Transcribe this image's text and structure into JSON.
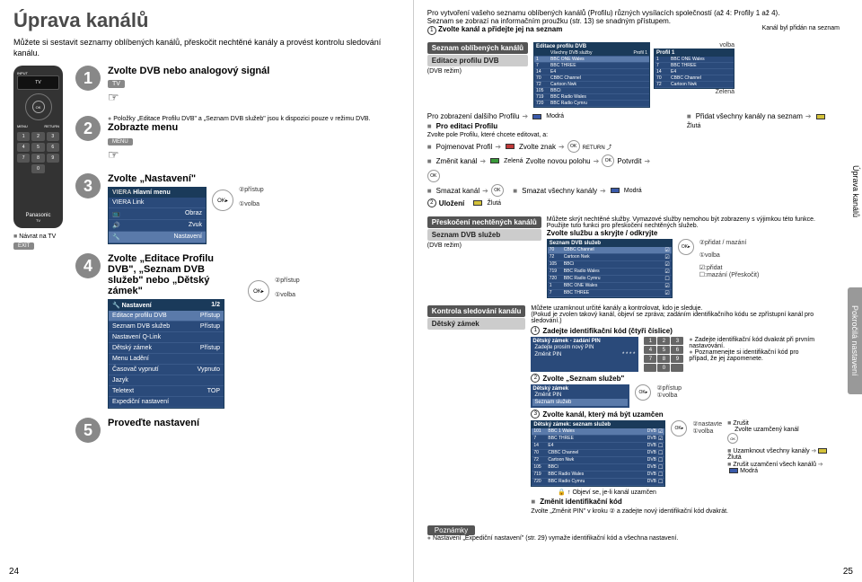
{
  "title": "Úprava kanálů",
  "intro": "Můžete si sestavit seznamy oblíbených kanálů, přeskočit nechtěné kanály a provést kontrolu sledování kanálu.",
  "steps": {
    "s1": {
      "num": "1",
      "title": "Zvolte DVB nebo analogový signál",
      "badge": "TV"
    },
    "s2": {
      "num": "2",
      "title": "Zobrazte menu",
      "note": "Položky „Editace Profilu DVB\" a „Seznam DVB služeb\" jsou k dispozici pouze v režimu DVB.",
      "badge": "MENU"
    },
    "s3": {
      "num": "3",
      "title": "Zvolte „Nastavení\"",
      "a1": "přístup",
      "a2": "volba"
    },
    "s4": {
      "num": "4",
      "title": "Zvolte „Editace Profilu DVB\", „Seznam DVB služeb\" nebo „Dětský zámek\"",
      "a1": "přístup",
      "a2": "volba"
    },
    "s5": {
      "num": "5",
      "title": "Proveďte nastavení"
    }
  },
  "remote": {
    "tv": "TV",
    "input": "INPUT",
    "ok": "OK",
    "menu": "MENU",
    "return": "RETURN",
    "exit": "EXIT",
    "nums": [
      "1",
      "2",
      "3",
      "4",
      "5",
      "6",
      "7",
      "8",
      "9",
      "0"
    ],
    "brand": "Panasonic",
    "brand_sub": "TV",
    "back_label": "Návrat na TV"
  },
  "menu3": {
    "hdr": "Hlavní menu",
    "items": [
      "VIERA Link",
      "Obraz",
      "Zvuk",
      "Nastavení"
    ]
  },
  "menu4": {
    "hdr": "Nastavení",
    "rows": [
      [
        "Editace profilu DVB",
        "Přístup"
      ],
      [
        "Seznam DVB služeb",
        "Přístup"
      ],
      [
        "Nastavení Q-Link",
        ""
      ],
      [
        "Dětský zámek",
        "Přístup"
      ],
      [
        "Menu Ladění",
        ""
      ],
      [
        "Časovač vypnutí",
        "Vypnuto"
      ],
      [
        "Jazyk",
        ""
      ],
      [
        "Teletext",
        "TOP"
      ],
      [
        "Expediční nastavení",
        ""
      ]
    ],
    "page": "1/2"
  },
  "right_intro": {
    "l1": "Pro vytvoření vašeho seznamu oblíbených kanálů (Profilu) různých vysílacích společností (až 4: Profily 1 až 4).",
    "l2": "Seznam se zobrazí na informačním proužku (str. 13) se snadným přístupem.",
    "l3": "Zvolte kanál a přidejte jej na seznam",
    "l3_note": "Kanál byl přidán na seznam"
  },
  "sec1": {
    "label1": "Seznam oblíbených kanálů",
    "label2": "Editace profilu DVB",
    "sub": "(DVB režim)",
    "table_hdr": "Editace profilu DVB",
    "col1": "Všechny DVB služby",
    "col2": "Profil 1",
    "channels": [
      [
        "1",
        "BBC ONE Wales"
      ],
      [
        "7",
        "BBC THREE"
      ],
      [
        "14",
        "E4"
      ],
      [
        "70",
        "CBBC Channel"
      ],
      [
        "72",
        "Cartoon Nwk"
      ],
      [
        "105",
        "BBCi"
      ],
      [
        "719",
        "BBC Radio Wales"
      ],
      [
        "720",
        "BBC Radio Cymru"
      ]
    ],
    "i1": "Pro zobrazení dalšího Profilu",
    "i2": "Přidat všechny kanály na seznam",
    "i3": "Pro editaci Profilu",
    "i4": "Zvolte pole Profilu, které chcete editovat, a:",
    "i5": "Pojmenovat Profil",
    "i5a": "Zvolte znak",
    "i6": "Změnit kanál",
    "i6a": "Zvolte novou polohu",
    "i6b": "Potvrdit",
    "i7": "Smazat kanál",
    "i7a": "Smazat všechny kanály",
    "i8": "Uložení",
    "c_green": "Zelená",
    "c_blue": "Modrá",
    "c_yellow": "Žlutá",
    "c_volba": "volba"
  },
  "sec2": {
    "label1": "Přeskočení nechtěných kanálů",
    "label2": "Seznam DVB služeb",
    "sub": "(DVB režim)",
    "p1": "Můžete skrýt nechtěné služby. Vymazové služby nemohou být zobrazeny s výjimkou této funkce.",
    "p2": "Použijte tuto funkci pro přeskočení nechtěných služeb.",
    "p3": "Zvolte službu a skryjte / odkryjte",
    "tbl_hdr": "Seznam DVB služeb",
    "rows": [
      [
        "70",
        "CBBC Channel",
        "☑"
      ],
      [
        "72",
        "Cartoon Nwk",
        "☑"
      ],
      [
        "105",
        "BBCi",
        "☑"
      ],
      [
        "719",
        "BBC Radio Wales",
        "☑"
      ],
      [
        "720",
        "BBC Radio Cymru",
        "☐"
      ],
      [
        "1",
        "BBC ONE Wales",
        "☑"
      ],
      [
        "7",
        "BBC THREE",
        "☑"
      ]
    ],
    "a1": "přidat / mazání",
    "a2": "volba",
    "leg1": ":přidat",
    "leg2": ":mazání (Přeskočit)"
  },
  "sec3": {
    "label1": "Kontrola sledování kanálu",
    "label2": "Dětský zámek",
    "p1": "Můžete uzamknout určité kanály a kontrolovat, kdo je sleduje.",
    "p2": "(Pokud je zvolen takový kanál, objeví se zpráva; zadáním identifikačního kódu se zpřístupní kanál pro sledování.)",
    "h1": "Zadejte identifikační kód (čtyři číslice)",
    "pin_hdr": "Dětský zámek - zadání PIN",
    "pin_row": "Zadejte prosím nový PIN",
    "pin_row2": "Změnit PIN",
    "pin_stars": "* * * *",
    "b1": "Zadejte identifikační kód dvakrát při prvním nastavování.",
    "b2": "Poznamenejte si identifikační kód pro případ, že jej zapomenete.",
    "h2": "Zvolte „Seznam služeb\"",
    "menu_hdr": "Dětský zámek",
    "menu_r1": "Změnit PIN",
    "menu_r2": "Seznam služeb",
    "a1": "přístup",
    "a2": "volba",
    "h3": "Zvolte kanál, který má být uzamčen",
    "tbl_hdr": "Dětský zámek: seznam služeb",
    "rows": [
      [
        "101",
        "BBC 1 Wales",
        "DVB",
        "☑"
      ],
      [
        "7",
        "BBC THREE",
        "DVB",
        "☑"
      ],
      [
        "14",
        "E4",
        "DVB",
        "☐"
      ],
      [
        "70",
        "CBBC Channel",
        "DVB",
        "☐"
      ],
      [
        "72",
        "Cartoon Nwk",
        "DVB",
        "☐"
      ],
      [
        "105",
        "BBCi",
        "DVB",
        "☐"
      ],
      [
        "719",
        "BBC Radio Wales",
        "DVB",
        "☐"
      ],
      [
        "720",
        "BBC Radio Cymru",
        "DVB",
        "☐"
      ]
    ],
    "a3": "nastavte",
    "a4": "volba",
    "r1": "Zrušit",
    "r2": "Zvolte uzamčený kanál",
    "r3": "Uzamknout všechny kanály",
    "r4": "Zrušit uzamčení všech kanálů",
    "msg": "Objeví se, je-li kanál uzamčen",
    "h4": "Změnit identifikační kód",
    "h4t": "Zvolte „Změnit PIN\" v kroku ② a zadejte nový identifikační kód dvakrát."
  },
  "notes": {
    "hdr": "Poznámky",
    "t": "Nastavení „Expediční nastavení\" (str. 29) vymaže identifikační kód a všechna nastavení."
  },
  "side1": "Úprava kanálů",
  "side2": "Pokročilá nastavení",
  "pages": {
    "l": "24",
    "r": "25"
  },
  "colors": {
    "green": "#3a9a3a",
    "yellow": "#d4c23a",
    "blue": "#3a5aaa",
    "red": "#c03a3a"
  }
}
